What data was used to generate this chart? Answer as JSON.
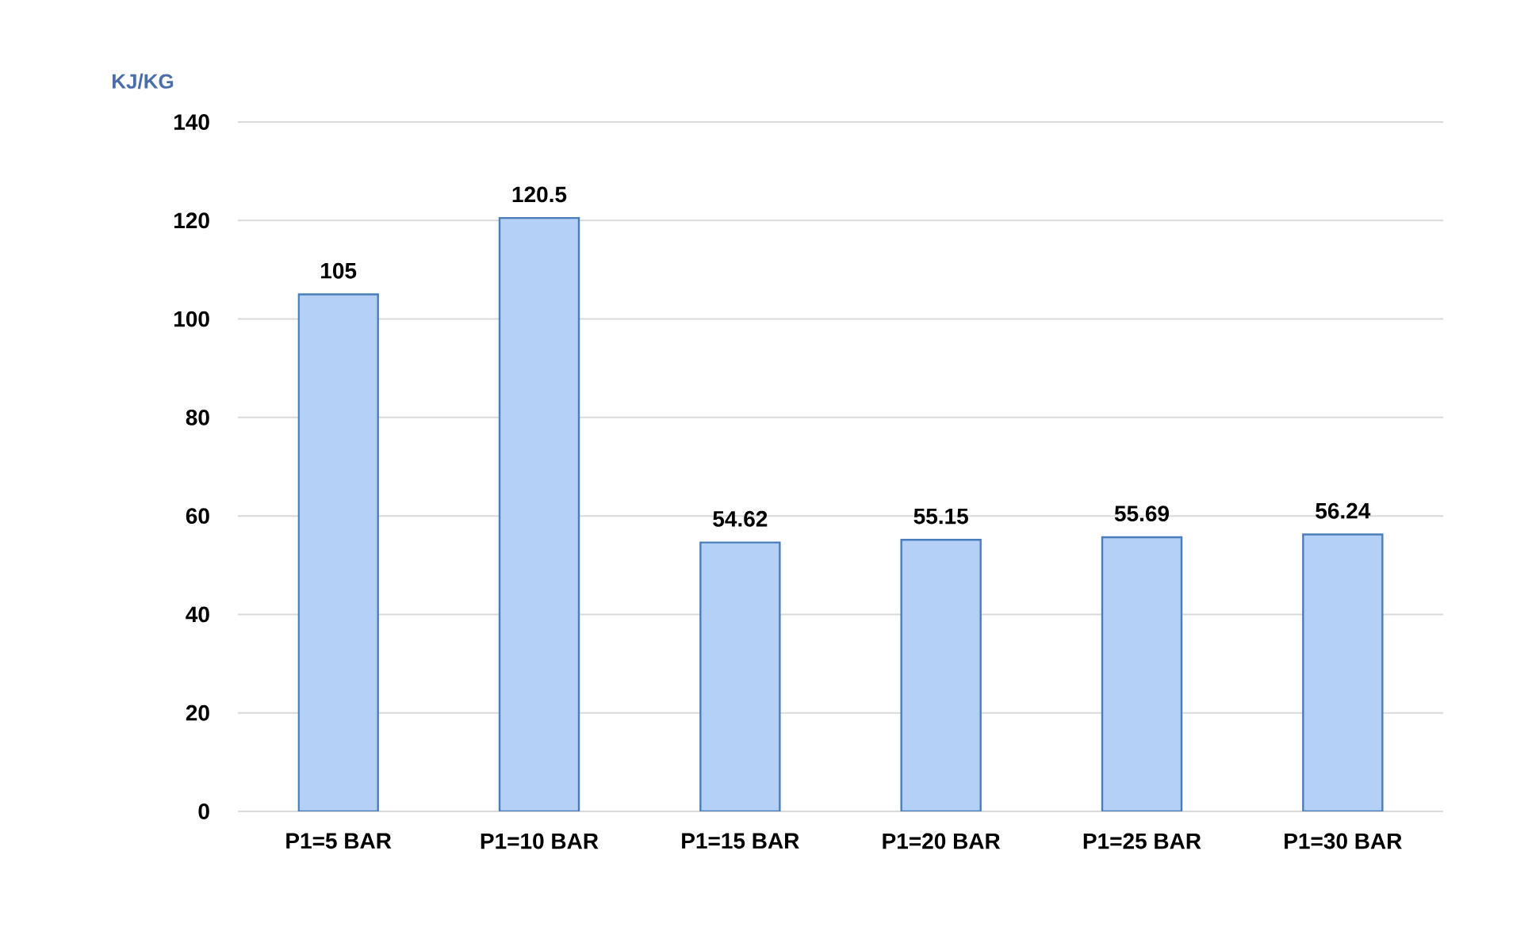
{
  "chart_data": {
    "type": "bar",
    "ylabel": "KJ/KG",
    "categories": [
      "P1=5 BAR",
      "P1=10 BAR",
      "P1=15 BAR",
      "P1=20 BAR",
      "P1=25 BAR",
      "P1=30 BAR"
    ],
    "values": [
      105,
      120.5,
      54.62,
      55.15,
      55.69,
      56.24
    ],
    "color": "#b4d0f7",
    "ylim": [
      0,
      140
    ],
    "yticks": [
      0,
      20,
      40,
      60,
      80,
      100,
      120,
      140
    ],
    "grid": "y",
    "data_labels": true
  }
}
